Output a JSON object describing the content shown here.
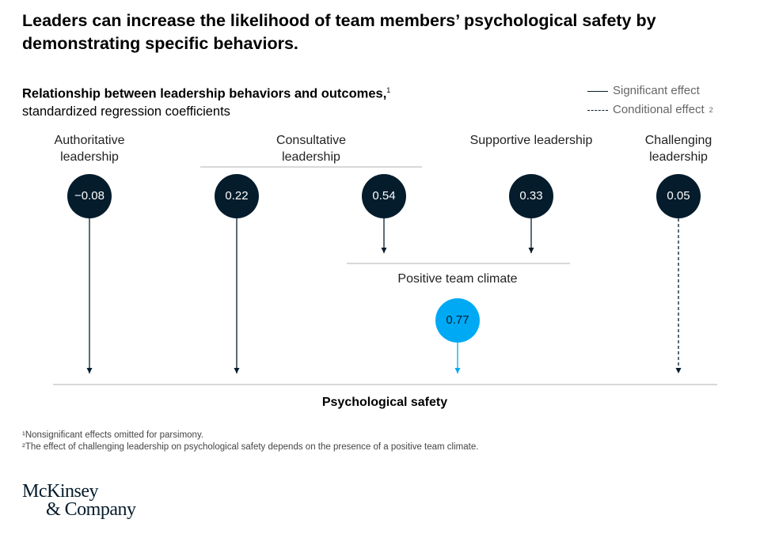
{
  "title": "Leaders can increase the likelihood of team members’ psychological safety by demonstrating specific behaviors.",
  "subtitle": {
    "bold": "Relationship between leadership behaviors and outcomes,",
    "bold_sup": "1",
    "normal": "standardized regression coefficients"
  },
  "legend": {
    "significant": "Significant effect",
    "conditional": "Conditional effect",
    "conditional_sup": "2"
  },
  "groups": {
    "authoritative": "Authoritative leadership",
    "consultative": "Consultative leadership",
    "supportive": "Supportive leadership",
    "challenging": "Challenging leadership"
  },
  "nodes": [
    {
      "value": "−0.08",
      "group": "Authoritative",
      "target": "Psychological safety",
      "effect": "significant"
    },
    {
      "value": "0.22",
      "group": "Consultative",
      "target": "Psychological safety",
      "effect": "significant"
    },
    {
      "value": "0.54",
      "group": "Consultative",
      "target": "Positive team climate",
      "effect": "significant"
    },
    {
      "value": "0.33",
      "group": "Supportive",
      "target": "Positive team climate",
      "effect": "significant"
    },
    {
      "value": "0.05",
      "group": "Challenging",
      "target": "Psychological safety",
      "effect": "conditional"
    }
  ],
  "climate": {
    "label": "Positive team climate",
    "value": "0.77",
    "target": "Psychological safety",
    "effect": "significant"
  },
  "outcome": "Psychological safety",
  "footnotes": [
    "¹Nonsignificant effects omitted for parsimony.",
    "²The effect of challenging leadership on psychological safety depends on the presence of a positive team climate."
  ],
  "logo": {
    "line1": "McKinsey",
    "line2": "& Company"
  },
  "colors": {
    "navy": "#051c2c",
    "blue": "#00a9f4",
    "rule": "#cccccc"
  }
}
